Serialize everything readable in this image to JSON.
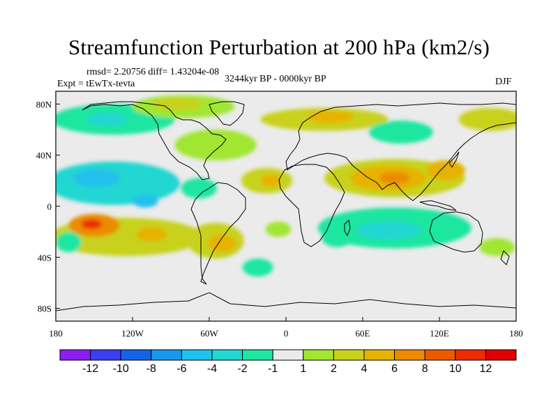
{
  "title": "Streamfunction Perturbation at 200 hPa (km2/s)",
  "stats": "rmsd= 2.20756 diff= 1.43204e-08",
  "experiment": "Expt = tEwTx-tevta",
  "period": "3244kyr BP - 0000kyr BP",
  "season": "DJF",
  "chart_data": {
    "type": "heatmap",
    "projection": "cylindrical-equidistant",
    "xlim": [
      -180,
      180
    ],
    "ylim": [
      -90,
      90
    ],
    "x_ticks": [
      {
        "value": -180,
        "label": "180"
      },
      {
        "value": -120,
        "label": "120W"
      },
      {
        "value": -60,
        "label": "60W"
      },
      {
        "value": 0,
        "label": "0"
      },
      {
        "value": 60,
        "label": "60E"
      },
      {
        "value": 120,
        "label": "120E"
      },
      {
        "value": 180,
        "label": "180"
      }
    ],
    "y_ticks": [
      {
        "value": 80,
        "label": "80N"
      },
      {
        "value": 40,
        "label": "40N"
      },
      {
        "value": 0,
        "label": "0"
      },
      {
        "value": -40,
        "label": "40S"
      },
      {
        "value": -80,
        "label": "80S"
      }
    ],
    "colorbar": {
      "labels": [
        "-12",
        "-10",
        "-8",
        "-6",
        "-4",
        "-2",
        "-1",
        "1",
        "2",
        "4",
        "6",
        "8",
        "10",
        "12"
      ],
      "colors": [
        "#8a1ef0",
        "#3c3cf0",
        "#1464e6",
        "#1a96ea",
        "#20c0ec",
        "#22d6d2",
        "#1ee6a0",
        "#ebebeb",
        "#a0e632",
        "#c8d21e",
        "#e6b400",
        "#eb8c00",
        "#eb5a00",
        "#eb2d00",
        "#e10000"
      ]
    },
    "features": [
      {
        "name": "n-pacific-neg",
        "lon": -135,
        "lat": 68,
        "rlon": 48,
        "rlat": 12,
        "value": -2
      },
      {
        "name": "n-pacific-neg-core",
        "lon": -140,
        "lat": 68,
        "rlon": 16,
        "rlat": 5,
        "value": -4
      },
      {
        "name": "arctic-canada-pos",
        "lon": -80,
        "lat": 78,
        "rlon": 40,
        "rlat": 9,
        "value": 1.5
      },
      {
        "name": "arctic-canada-pos-core",
        "lon": -85,
        "lat": 80,
        "rlon": 20,
        "rlat": 5,
        "value": 2
      },
      {
        "name": "e-north-america-pos",
        "lon": -55,
        "lat": 48,
        "rlon": 32,
        "rlat": 12,
        "value": 1.5
      },
      {
        "name": "trop-pacific-north-neg",
        "lon": -135,
        "lat": 18,
        "rlon": 52,
        "rlat": 17,
        "value": -4
      },
      {
        "name": "trop-pacific-north-neg-core",
        "lon": -148,
        "lat": 22,
        "rlon": 18,
        "rlat": 7,
        "value": -6
      },
      {
        "name": "trop-pacific-north-neg-core2",
        "lon": -110,
        "lat": 4,
        "rlon": 10,
        "rlat": 5,
        "value": -6
      },
      {
        "name": "caribbean-neg",
        "lon": -68,
        "lat": 14,
        "rlon": 14,
        "rlat": 8,
        "value": -1.5
      },
      {
        "name": "trop-pacific-south-pos",
        "lon": -125,
        "lat": -24,
        "rlon": 60,
        "rlat": 15,
        "value": 2
      },
      {
        "name": "trop-pacific-south-pos-c1",
        "lon": -150,
        "lat": -15,
        "rlon": 20,
        "rlat": 9,
        "value": 6
      },
      {
        "name": "trop-pacific-south-pos-c2",
        "lon": -152,
        "lat": -14,
        "rlon": 8,
        "rlat": 4,
        "value": 10
      },
      {
        "name": "trop-pacific-south-pos-c3",
        "lon": -105,
        "lat": -22,
        "rlon": 12,
        "rlat": 6,
        "value": 4
      },
      {
        "name": "s-america-pos",
        "lon": -55,
        "lat": -27,
        "rlon": 22,
        "rlat": 14,
        "value": 2
      },
      {
        "name": "s-america-pos-core",
        "lon": -50,
        "lat": -29,
        "rlon": 11,
        "rlat": 7,
        "value": 4
      },
      {
        "name": "s-atlantic-neg",
        "lon": -22,
        "lat": -48,
        "rlon": 12,
        "rlat": 7,
        "value": -2
      },
      {
        "name": "s-atlantic-pos",
        "lon": -6,
        "lat": -18,
        "rlon": 10,
        "rlat": 6,
        "value": 1.5
      },
      {
        "name": "atlantic-pos",
        "lon": -15,
        "lat": 20,
        "rlon": 20,
        "rlat": 10,
        "value": 2
      },
      {
        "name": "atlantic-pos-core",
        "lon": -12,
        "lat": 20,
        "rlon": 8,
        "rlat": 5,
        "value": 4
      },
      {
        "name": "europe-pos",
        "lon": 30,
        "lat": 68,
        "rlon": 50,
        "rlat": 9,
        "value": 2
      },
      {
        "name": "europe-pos-core",
        "lon": 35,
        "lat": 70,
        "rlon": 18,
        "rlat": 5,
        "value": 4
      },
      {
        "name": "e-siberia-neg",
        "lon": 90,
        "lat": 58,
        "rlon": 25,
        "rlat": 9,
        "value": -1.5
      },
      {
        "name": "asia-pos",
        "lon": 85,
        "lat": 22,
        "rlon": 55,
        "rlat": 15,
        "value": 2
      },
      {
        "name": "asia-pos-core",
        "lon": 80,
        "lat": 22,
        "rlon": 30,
        "rlat": 10,
        "value": 4
      },
      {
        "name": "asia-pos-core2",
        "lon": 85,
        "lat": 22,
        "rlon": 12,
        "rlat": 5,
        "value": 6
      },
      {
        "name": "china-pos",
        "lon": 125,
        "lat": 28,
        "rlon": 15,
        "rlat": 8,
        "value": 4
      },
      {
        "name": "pacific-nw-pos",
        "lon": 160,
        "lat": 68,
        "rlon": 25,
        "rlat": 9,
        "value": 2
      },
      {
        "name": "indian-ocean-neg",
        "lon": 85,
        "lat": -17,
        "rlon": 60,
        "rlat": 16,
        "value": -2
      },
      {
        "name": "indian-ocean-neg-core",
        "lon": 80,
        "lat": -19,
        "rlon": 25,
        "rlat": 7,
        "value": -4
      },
      {
        "name": "africa-south-neg",
        "lon": 40,
        "lat": -25,
        "rlon": 12,
        "rlat": 7,
        "value": -1.5
      },
      {
        "name": "s-pacific-west-neg",
        "lon": -170,
        "lat": -28,
        "rlon": 10,
        "rlat": 8,
        "value": -2
      },
      {
        "name": "s-pacific-east-pos",
        "lon": 165,
        "lat": -32,
        "rlon": 14,
        "rlat": 7,
        "value": 1.5
      }
    ]
  }
}
